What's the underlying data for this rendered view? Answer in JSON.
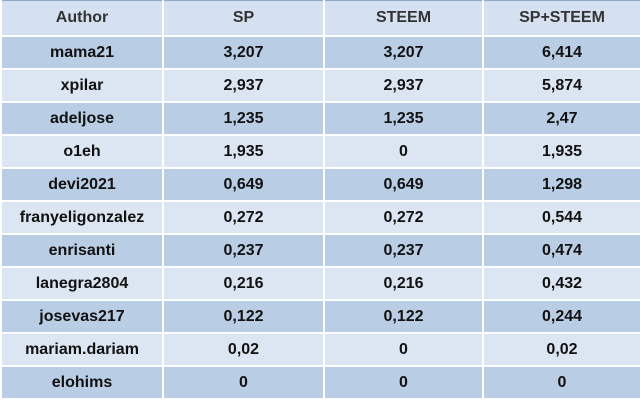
{
  "table": {
    "header": [
      "Author",
      "SP",
      "STEEM",
      "SP+STEEM"
    ],
    "rows": [
      [
        "mama21",
        "3,207",
        "3,207",
        "6,414"
      ],
      [
        "xpilar",
        "2,937",
        "2,937",
        "5,874"
      ],
      [
        "adeljose",
        "1,235",
        "1,235",
        "2,47"
      ],
      [
        "o1eh",
        "1,935",
        "0",
        "1,935"
      ],
      [
        "devi2021",
        "0,649",
        "0,649",
        "1,298"
      ],
      [
        "franyeligonzalez",
        "0,272",
        "0,272",
        "0,544"
      ],
      [
        "enrisanti",
        "0,237",
        "0,237",
        "0,474"
      ],
      [
        "lanegra2804",
        "0,216",
        "0,216",
        "0,432"
      ],
      [
        "josevas217",
        "0,122",
        "0,122",
        "0,244"
      ],
      [
        "mariam.dariam",
        "0,02",
        "0",
        "0,02"
      ],
      [
        "elohims",
        "0",
        "0",
        "0"
      ]
    ]
  }
}
